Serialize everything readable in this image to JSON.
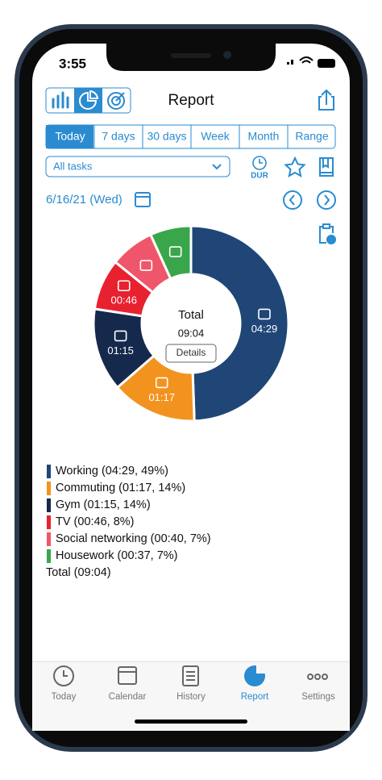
{
  "status_bar": {
    "time": "3:55"
  },
  "header": {
    "title": "Report"
  },
  "tabs": {
    "items": [
      "Today",
      "7 days",
      "30 days",
      "Week",
      "Month",
      "Range"
    ],
    "selected": 0
  },
  "filter": {
    "label": "All tasks"
  },
  "toolbar": {
    "dur": "DUR"
  },
  "date": "6/16/21 (Wed)",
  "chart_data": {
    "type": "donut",
    "values": [
      269,
      77,
      75,
      46,
      40,
      37
    ],
    "value_labels": [
      "04:29",
      "01:17",
      "01:15",
      "00:46",
      null,
      null
    ],
    "colors": [
      "#1f4677",
      "#f3931f",
      "#15294d",
      "#e8212f",
      "#f0566b",
      "#3aa64b"
    ],
    "center_title": "Total",
    "center_value": "09:04",
    "center_button": "Details",
    "legend": [
      "Working (04:29, 49%)",
      "Commuting (01:17, 14%)",
      "Gym (01:15, 14%)",
      "TV (00:46, 8%)",
      "Social networking (00:40, 7%)",
      "Housework (00:37, 7%)"
    ],
    "total_label": "Total (09:04)"
  },
  "tab_bar": {
    "items": [
      "Today",
      "Calendar",
      "History",
      "Report",
      "Settings"
    ],
    "selected": 3
  }
}
